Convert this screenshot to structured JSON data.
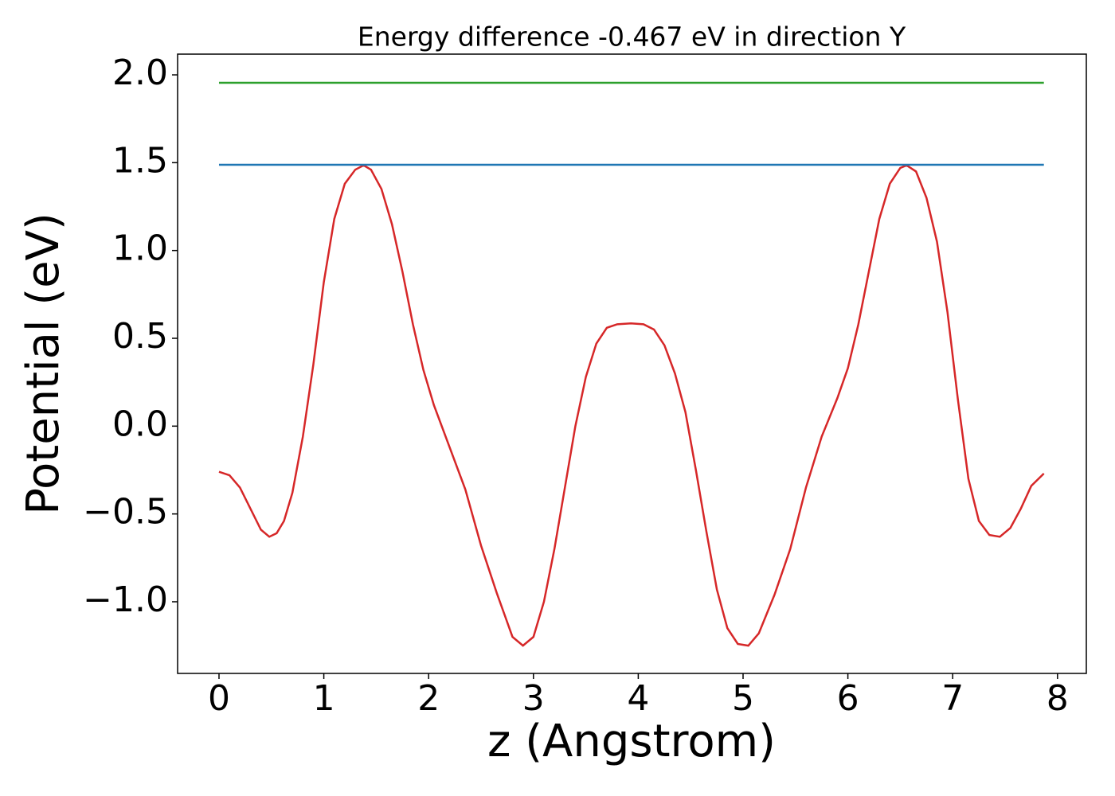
{
  "chart_data": {
    "type": "line",
    "title": "Energy difference -0.467 eV in direction Y",
    "xlabel": "z (Angstrom)",
    "ylabel": "Potential (eV)",
    "xlim": [
      -0.395,
      8.275
    ],
    "ylim": [
      -1.408,
      2.118
    ],
    "xticks": [
      0,
      1,
      2,
      3,
      4,
      5,
      6,
      7,
      8
    ],
    "yticks": [
      {
        "value": -1.0,
        "label": "−1.0"
      },
      {
        "value": -0.5,
        "label": "−0.5"
      },
      {
        "value": 0.0,
        "label": "0.0"
      },
      {
        "value": 0.5,
        "label": "0.5"
      },
      {
        "value": 1.0,
        "label": "1.0"
      },
      {
        "value": 1.5,
        "label": "1.5"
      },
      {
        "value": 2.0,
        "label": "2.0"
      }
    ],
    "series": [
      {
        "color": "#d62728",
        "x": [
          0,
          0.1,
          0.2,
          0.3,
          0.4,
          0.48,
          0.55,
          0.62,
          0.7,
          0.8,
          0.9,
          1.0,
          1.1,
          1.2,
          1.3,
          1.38,
          1.45,
          1.55,
          1.65,
          1.75,
          1.85,
          1.95,
          2.05,
          2.2,
          2.35,
          2.5,
          2.65,
          2.8,
          2.9,
          3.0,
          3.1,
          3.2,
          3.3,
          3.4,
          3.5,
          3.6,
          3.7,
          3.8,
          3.93,
          4.05,
          4.15,
          4.25,
          4.35,
          4.45,
          4.55,
          4.65,
          4.75,
          4.85,
          4.95,
          5.05,
          5.15,
          5.3,
          5.45,
          5.6,
          5.75,
          5.9,
          6.0,
          6.1,
          6.2,
          6.3,
          6.4,
          6.5,
          6.56,
          6.65,
          6.75,
          6.85,
          6.95,
          7.05,
          7.15,
          7.25,
          7.35,
          7.45,
          7.55,
          7.65,
          7.75,
          7.87
        ],
        "values": [
          -0.26,
          -0.28,
          -0.35,
          -0.47,
          -0.59,
          -0.63,
          -0.61,
          -0.54,
          -0.38,
          -0.06,
          0.35,
          0.82,
          1.18,
          1.38,
          1.46,
          1.485,
          1.46,
          1.35,
          1.15,
          0.88,
          0.58,
          0.32,
          0.12,
          -0.12,
          -0.36,
          -0.68,
          -0.95,
          -1.2,
          -1.25,
          -1.2,
          -1.0,
          -0.7,
          -0.35,
          0.0,
          0.28,
          0.47,
          0.56,
          0.58,
          0.585,
          0.58,
          0.55,
          0.46,
          0.3,
          0.08,
          -0.25,
          -0.6,
          -0.93,
          -1.15,
          -1.24,
          -1.25,
          -1.18,
          -0.96,
          -0.7,
          -0.35,
          -0.06,
          0.16,
          0.33,
          0.58,
          0.88,
          1.18,
          1.38,
          1.47,
          1.485,
          1.45,
          1.3,
          1.05,
          0.65,
          0.15,
          -0.3,
          -0.54,
          -0.62,
          -0.63,
          -0.58,
          -0.47,
          -0.34,
          -0.27
        ]
      },
      {
        "color": "#1f77b4",
        "x": [
          0,
          7.87
        ],
        "values": [
          1.488,
          1.488
        ]
      },
      {
        "color": "#2ca02c",
        "x": [
          0,
          7.87
        ],
        "values": [
          1.955,
          1.955
        ]
      }
    ]
  }
}
